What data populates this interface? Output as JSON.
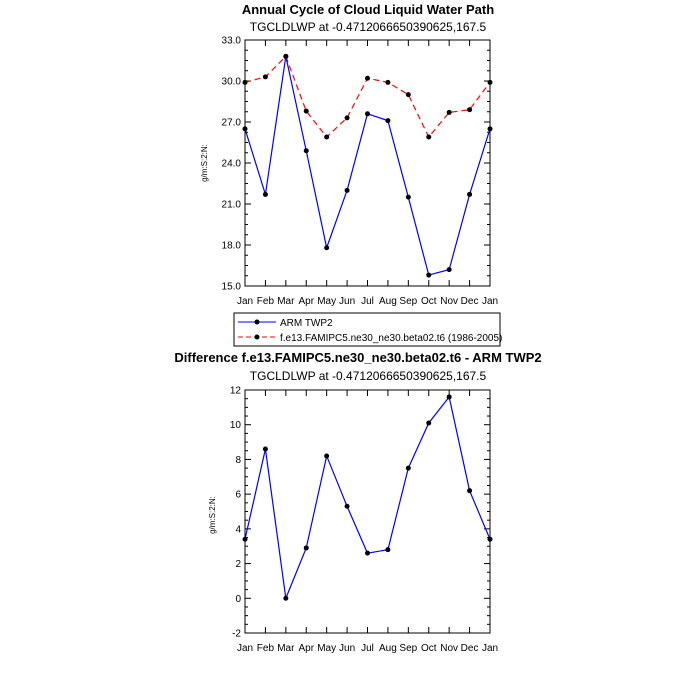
{
  "chart_data": [
    {
      "type": "line",
      "title": "Annual Cycle of Cloud Liquid Water Path",
      "subtitle": "TGCLDLWP at -0.4712066650390625,167.5",
      "ylabel": "g/m:S:2:N:",
      "xlabel": "",
      "categories": [
        "Jan",
        "Feb",
        "Mar",
        "Apr",
        "May",
        "Jun",
        "Jul",
        "Aug",
        "Sep",
        "Oct",
        "Nov",
        "Dec",
        "Jan"
      ],
      "ylim": [
        15.0,
        33.0
      ],
      "yticks": [
        "15.0",
        "18.0",
        "21.0",
        "24.0",
        "27.0",
        "30.0",
        "33.0"
      ],
      "series": [
        {
          "name": "ARM TWP2",
          "color": "#0000ff",
          "dash": "solid",
          "values": [
            26.5,
            21.7,
            31.8,
            24.9,
            17.8,
            22.0,
            27.6,
            27.1,
            21.5,
            15.8,
            16.2,
            21.7,
            26.5
          ]
        },
        {
          "name": "f.e13.FAMIPC5.ne30_ne30.beta02.t6 (1986-2005)",
          "color": "#ff0000",
          "dash": "dashed",
          "values": [
            29.9,
            30.3,
            31.8,
            27.8,
            25.9,
            27.3,
            30.2,
            29.9,
            29.0,
            25.9,
            27.7,
            27.9,
            29.9
          ]
        }
      ],
      "legend": [
        "ARM TWP2",
        "f.e13.FAMIPC5.ne30_ne30.beta02.t6 (1986-2005)"
      ]
    },
    {
      "type": "line",
      "title": "Difference f.e13.FAMIPC5.ne30_ne30.beta02.t6 - ARM TWP2",
      "subtitle": "TGCLDLWP at -0.4712066650390625,167.5",
      "ylabel": "g/m:S:2:N:",
      "xlabel": "",
      "categories": [
        "Jan",
        "Feb",
        "Mar",
        "Apr",
        "May",
        "Jun",
        "Jul",
        "Aug",
        "Sep",
        "Oct",
        "Nov",
        "Dec",
        "Jan"
      ],
      "ylim": [
        -2,
        12
      ],
      "yticks": [
        "-2",
        "0",
        "2",
        "4",
        "6",
        "8",
        "10",
        "12"
      ],
      "series": [
        {
          "name": "Difference",
          "color": "#0000ff",
          "dash": "solid",
          "values": [
            3.4,
            8.6,
            0.0,
            2.9,
            8.2,
            5.3,
            2.6,
            2.8,
            7.5,
            10.1,
            11.6,
            6.2,
            3.4
          ]
        }
      ]
    }
  ]
}
